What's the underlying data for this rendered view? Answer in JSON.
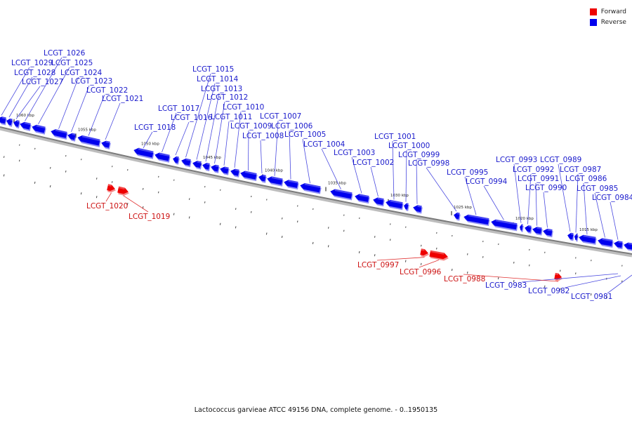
{
  "legend": {
    "forward_label": "Forward",
    "reverse_label": "Reverse",
    "forward_color": "#ee0000",
    "reverse_color": "#0000ee"
  },
  "caption": "Lactococcus garvieae ATCC 49156 DNA, complete genome. - 0..1950135",
  "ruler_ticks": [
    "1060 kbp",
    "1055 kbp",
    "1050 kbp",
    "1045 kbp",
    "1040 kbp",
    "1035 kbp",
    "1030 kbp",
    "1025 kbp",
    "1020 kbp",
    "1015 kbp"
  ],
  "reverse_genes": [
    "LCGT_1029",
    "LCGT_1028",
    "LCGT_1027",
    "LCGT_1026",
    "LCGT_1025",
    "LCGT_1024",
    "LCGT_1023",
    "LCGT_1022",
    "LCGT_1021",
    "LCGT_1018",
    "LCGT_1017",
    "LCGT_1016",
    "LCGT_1015",
    "LCGT_1014",
    "LCGT_1013",
    "LCGT_1012",
    "LCGT_1011",
    "LCGT_1010",
    "LCGT_1009",
    "LCGT_1008",
    "LCGT_1007",
    "LCGT_1006",
    "LCGT_1005",
    "LCGT_1004",
    "LCGT_1003",
    "LCGT_1002",
    "LCGT_1001",
    "LCGT_1000",
    "LCGT_0999",
    "LCGT_0998",
    "LCGT_0995",
    "LCGT_0994",
    "LCGT_0993",
    "LCGT_0992",
    "LCGT_0991",
    "LCGT_0990",
    "LCGT_0989",
    "LCGT_0987",
    "LCGT_0986",
    "LCGT_0985",
    "LCGT_0984",
    "LCGT_0983",
    "LCGT_0982",
    "LCGT_0981"
  ],
  "forward_genes": [
    "LCGT_1020",
    "LCGT_1019",
    "LCGT_0997",
    "LCGT_0996",
    "LCGT_0988"
  ]
}
